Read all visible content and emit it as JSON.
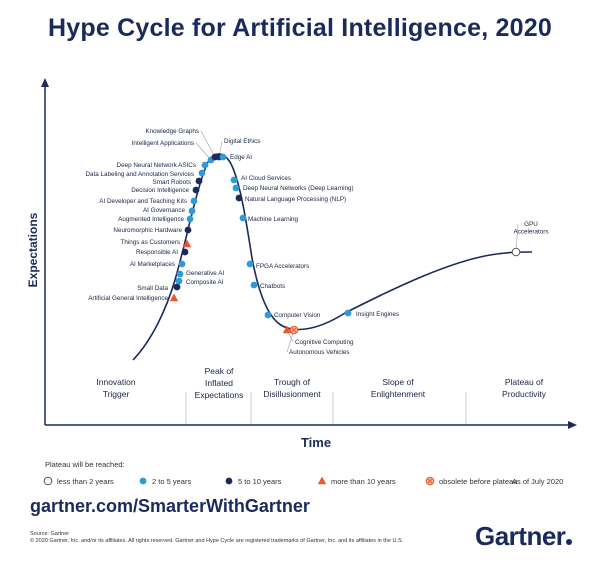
{
  "title": "Hype Cycle for Artificial Intelligence, 2020",
  "chart_data": {
    "type": "line",
    "xlabel": "Time",
    "ylabel": "Expectations",
    "phases": [
      "Innovation Trigger",
      "Peak of Inflated Expectations",
      "Trough of Disillusionment",
      "Slope of Enlightenment",
      "Plateau of Productivity"
    ],
    "legend_title": "Plateau will be reached:",
    "legend": [
      {
        "key": "lt2",
        "label": "less than 2 years"
      },
      {
        "key": "2to5",
        "label": "2 to 5 years"
      },
      {
        "key": "5to10",
        "label": "5 to 10 years"
      },
      {
        "key": "gt10",
        "label": "more than 10 years"
      },
      {
        "key": "obsolete",
        "label": "obsolete before plateau"
      }
    ],
    "as_of": "As of July 2020",
    "colors": {
      "lt2": "#ffffff",
      "2to5": "#2f9bd6",
      "5to10": "#1a2a5c",
      "gt10": "#e8582a",
      "obsolete": "#f4b49c",
      "curve": "#1a2a5c"
    },
    "technologies": [
      {
        "name": "Artificial General Intelligence",
        "cat": "gt10"
      },
      {
        "name": "Small Data",
        "cat": "5to10"
      },
      {
        "name": "Composite AI",
        "cat": "2to5"
      },
      {
        "name": "Generative AI",
        "cat": "2to5"
      },
      {
        "name": "AI Marketplaces",
        "cat": "2to5"
      },
      {
        "name": "Responsible AI",
        "cat": "5to10"
      },
      {
        "name": "Things as Customers",
        "cat": "gt10"
      },
      {
        "name": "Neuromorphic Hardware",
        "cat": "5to10"
      },
      {
        "name": "Augmented Intelligence",
        "cat": "2to5"
      },
      {
        "name": "AI Governance",
        "cat": "2to5"
      },
      {
        "name": "AI Developer and Teaching Kits",
        "cat": "2to5"
      },
      {
        "name": "Decision Intelligence",
        "cat": "5to10"
      },
      {
        "name": "Smart Robots",
        "cat": "5to10"
      },
      {
        "name": "Data Labeling and Annotation Services",
        "cat": "2to5"
      },
      {
        "name": "Deep Neural Network ASICs",
        "cat": "2to5"
      },
      {
        "name": "Intelligent Applications",
        "cat": "2to5"
      },
      {
        "name": "Knowledge Graphs",
        "cat": "5to10"
      },
      {
        "name": "Digital Ethics",
        "cat": "5to10"
      },
      {
        "name": "Edge AI",
        "cat": "2to5"
      },
      {
        "name": "AI Cloud Services",
        "cat": "2to5"
      },
      {
        "name": "Deep Neural Networks (Deep Learning)",
        "cat": "2to5"
      },
      {
        "name": "Natural Language Processing (NLP)",
        "cat": "5to10"
      },
      {
        "name": "Machine Learning",
        "cat": "2to5"
      },
      {
        "name": "FPGA Accelerators",
        "cat": "2to5"
      },
      {
        "name": "Chatbots",
        "cat": "2to5"
      },
      {
        "name": "Computer Vision",
        "cat": "2to5"
      },
      {
        "name": "Cognitive Computing",
        "cat": "gt10"
      },
      {
        "name": "Autonomous Vehicles",
        "cat": "obsolete"
      },
      {
        "name": "Insight Engines",
        "cat": "2to5"
      },
      {
        "name": "GPU Accelerators",
        "cat": "lt2"
      }
    ]
  },
  "footer": {
    "url": "gartner.com/SmarterWithGartner",
    "source": "Source: Gartner",
    "copyright": "© 2020 Gartner, Inc. and/or its affiliates. All rights reserved. Gartner and Hype Cycle are registered trademarks of Gartner, Inc. and its affiliates in the U.S.",
    "logo": "Gartner"
  }
}
